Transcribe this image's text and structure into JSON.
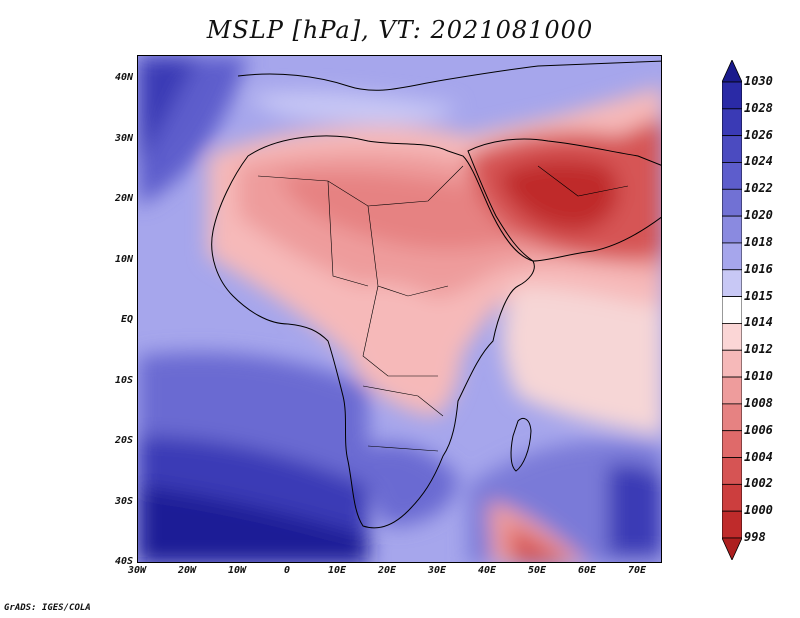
{
  "title": "MSLP [hPa], VT: 2021081000",
  "footer": "GrADS: IGES/COLA",
  "axes": {
    "lat_labels": [
      "40N",
      "30N",
      "20N",
      "10N",
      "EQ",
      "10S",
      "20S",
      "30S",
      "40S"
    ],
    "lon_labels": [
      "30W",
      "20W",
      "10W",
      "0",
      "10E",
      "20E",
      "30E",
      "40E",
      "50E",
      "60E",
      "70E"
    ],
    "lat_range": [
      -40,
      44
    ],
    "lon_range": [
      -30,
      75
    ]
  },
  "colorbar": {
    "levels": [
      "1030",
      "1028",
      "1026",
      "1024",
      "1022",
      "1020",
      "1018",
      "1016",
      "1015",
      "1014",
      "1012",
      "1010",
      "1008",
      "1006",
      "1004",
      "1002",
      "1000",
      "998"
    ],
    "colors": [
      "#1a1a8c",
      "#2a2aa6",
      "#3a3ab5",
      "#4b4bc0",
      "#5d5dcc",
      "#7171d4",
      "#8a8ae0",
      "#a6a6ec",
      "#c8c8f5",
      "#ffffff",
      "#fbd6d6",
      "#f6b9b9",
      "#ee9c9c",
      "#e68282",
      "#df6a6a",
      "#d65454",
      "#cc3e3e",
      "#bf2b2b",
      "#ad1f1f"
    ]
  },
  "colors": {
    "ocean_high": "#3a3ab5",
    "neutral": "#ffffff",
    "land_low": "#cc3e3e"
  }
}
